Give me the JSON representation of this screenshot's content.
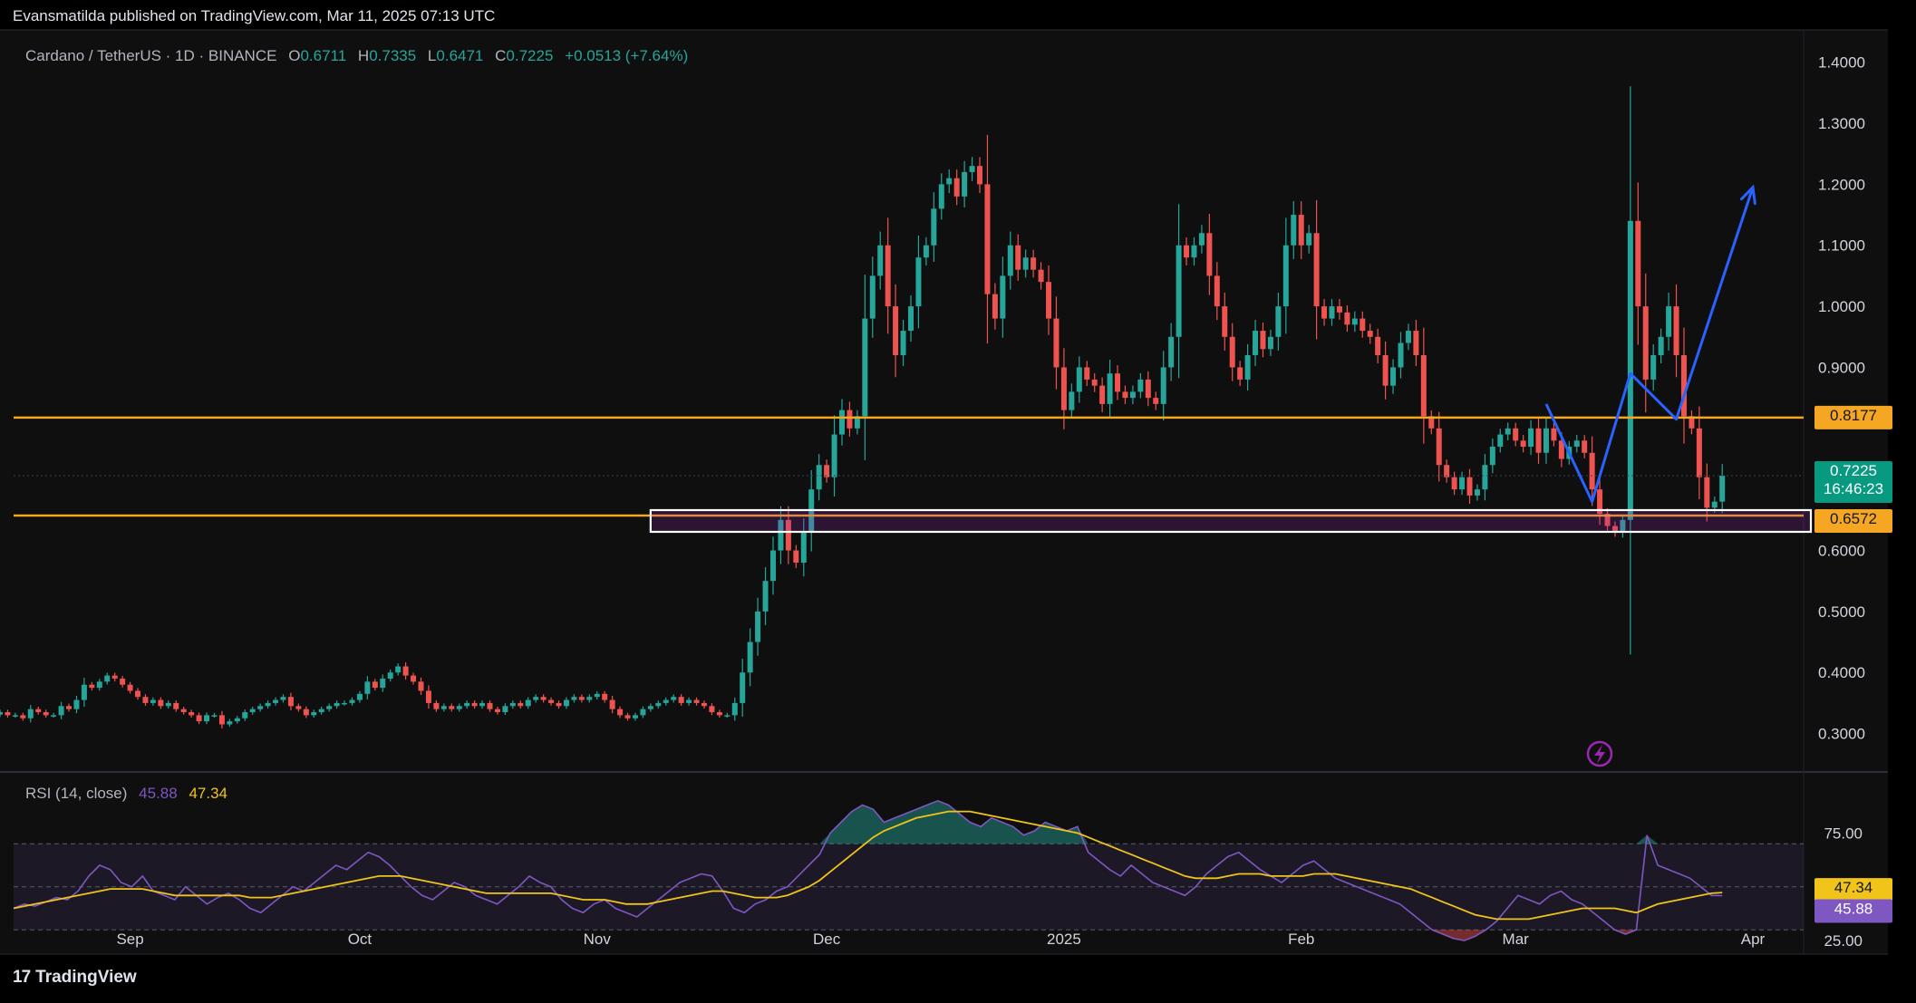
{
  "header": {
    "publisher_line": "Evansmatilda published on TradingView.com, Mar 11, 2025 07:13 UTC"
  },
  "legend": {
    "symbol": "Cardano / TetherUS · 1D · BINANCE",
    "open_label": "O",
    "open": "0.6711",
    "high_label": "H",
    "high": "0.7335",
    "low_label": "L",
    "low": "0.6471",
    "close_label": "C",
    "close": "0.7225",
    "change": "+0.0513 (+7.64%)"
  },
  "rsi_legend": {
    "label": "RSI (14, close)",
    "rsi_value": "45.88",
    "ma_value": "47.34"
  },
  "price_tags": {
    "resistance": "0.8177",
    "support": "0.6572",
    "last": "0.7225",
    "countdown": "16:46:23",
    "rsi": "45.88",
    "rsi_ma": "47.34"
  },
  "brand": {
    "logo_mark": "17",
    "name": "TradingView"
  },
  "colors": {
    "up": "#26a69a",
    "down": "#ef5350",
    "level": "#f5a623",
    "projection": "#2962ff",
    "rsi": "#7e57c2",
    "rsi_ma": "#f0c419",
    "zone_border": "#ffffff"
  },
  "icons": [
    "lightning-icon",
    "tradingview-logo-icon"
  ],
  "chart_data": [
    {
      "type": "candlestick",
      "title": "Cardano / TetherUS · 1D · BINANCE",
      "x_axis_type": "date",
      "x_start": "2024-08-15",
      "x_end": "2025-04-10",
      "xticks": [
        {
          "label": "Sep",
          "date": "2024-09-01"
        },
        {
          "label": "Oct",
          "date": "2024-10-01"
        },
        {
          "label": "Nov",
          "date": "2024-11-01"
        },
        {
          "label": "Dec",
          "date": "2024-12-01"
        },
        {
          "label": "2025",
          "date": "2025-01-01"
        },
        {
          "label": "Feb",
          "date": "2025-02-01"
        },
        {
          "label": "Mar",
          "date": "2025-03-01"
        },
        {
          "label": "Apr",
          "date": "2025-04-01"
        }
      ],
      "yticks": [
        "1.4000",
        "1.3000",
        "1.2000",
        "1.1000",
        "1.0000",
        "0.9000",
        "0.6000",
        "0.5000",
        "0.4000",
        "0.3000"
      ],
      "ylim": [
        0.24,
        1.45
      ],
      "series_start_date": "2024-08-15",
      "close": [
        0.335,
        0.33,
        0.33,
        0.325,
        0.34,
        0.335,
        0.33,
        0.33,
        0.345,
        0.34,
        0.355,
        0.38,
        0.375,
        0.385,
        0.395,
        0.39,
        0.38,
        0.37,
        0.36,
        0.35,
        0.355,
        0.345,
        0.35,
        0.34,
        0.335,
        0.33,
        0.32,
        0.33,
        0.33,
        0.315,
        0.32,
        0.325,
        0.335,
        0.34,
        0.345,
        0.35,
        0.355,
        0.36,
        0.345,
        0.34,
        0.33,
        0.335,
        0.34,
        0.345,
        0.35,
        0.35,
        0.355,
        0.365,
        0.385,
        0.375,
        0.39,
        0.4,
        0.41,
        0.395,
        0.385,
        0.37,
        0.35,
        0.34,
        0.345,
        0.34,
        0.345,
        0.35,
        0.345,
        0.35,
        0.34,
        0.335,
        0.345,
        0.35,
        0.345,
        0.355,
        0.36,
        0.355,
        0.35,
        0.345,
        0.355,
        0.36,
        0.355,
        0.36,
        0.365,
        0.355,
        0.34,
        0.33,
        0.325,
        0.33,
        0.34,
        0.345,
        0.35,
        0.355,
        0.36,
        0.35,
        0.355,
        0.35,
        0.345,
        0.335,
        0.33,
        0.33,
        0.35,
        0.4,
        0.45,
        0.5,
        0.55,
        0.6,
        0.65,
        0.6,
        0.58,
        0.63,
        0.7,
        0.74,
        0.72,
        0.79,
        0.83,
        0.8,
        0.82,
        0.98,
        1.05,
        1.1,
        1.0,
        0.92,
        0.96,
        1.0,
        1.08,
        1.1,
        1.16,
        1.2,
        1.21,
        1.18,
        1.22,
        1.23,
        1.2,
        1.02,
        0.98,
        1.05,
        1.1,
        1.06,
        1.08,
        1.06,
        1.04,
        0.98,
        0.9,
        0.83,
        0.86,
        0.9,
        0.88,
        0.87,
        0.84,
        0.89,
        0.86,
        0.85,
        0.86,
        0.88,
        0.85,
        0.84,
        0.9,
        0.95,
        1.1,
        1.08,
        1.1,
        1.12,
        1.05,
        1.0,
        0.95,
        0.9,
        0.88,
        0.92,
        0.96,
        0.93,
        0.95,
        1.0,
        1.1,
        1.15,
        1.1,
        1.12,
        1.0,
        0.98,
        1.0,
        0.99,
        0.97,
        0.98,
        0.96,
        0.95,
        0.92,
        0.87,
        0.9,
        0.94,
        0.96,
        0.92,
        0.82,
        0.8,
        0.74,
        0.72,
        0.7,
        0.72,
        0.69,
        0.7,
        0.74,
        0.77,
        0.79,
        0.8,
        0.78,
        0.77,
        0.8,
        0.76,
        0.8,
        0.78,
        0.75,
        0.77,
        0.78,
        0.76,
        0.7,
        0.66,
        0.64,
        0.63,
        0.65,
        1.14,
        1.0,
        0.88,
        0.92,
        0.95,
        1.0,
        0.92,
        0.82,
        0.8,
        0.72,
        0.67,
        0.68,
        0.7225
      ]
    },
    {
      "type": "line",
      "title": "RSI (14, close)",
      "yticks": [
        "75.00",
        "25.00"
      ],
      "bands": [
        70,
        50,
        30
      ],
      "ylim": [
        20,
        100
      ],
      "series": [
        {
          "name": "RSI",
          "values": [
            40,
            42,
            41,
            43,
            45,
            44,
            48,
            55,
            60,
            58,
            52,
            50,
            55,
            48,
            46,
            44,
            50,
            46,
            42,
            45,
            47,
            44,
            40,
            38,
            42,
            46,
            50,
            48,
            52,
            56,
            60,
            58,
            62,
            66,
            64,
            60,
            55,
            50,
            46,
            44,
            48,
            52,
            50,
            46,
            44,
            42,
            46,
            50,
            55,
            52,
            50,
            44,
            40,
            38,
            42,
            44,
            40,
            38,
            36,
            40,
            44,
            48,
            52,
            54,
            56,
            55,
            48,
            40,
            38,
            42,
            44,
            48,
            50,
            55,
            60,
            65,
            75,
            80,
            85,
            88,
            86,
            80,
            82,
            84,
            86,
            88,
            90,
            88,
            84,
            80,
            78,
            82,
            80,
            78,
            74,
            76,
            80,
            78,
            76,
            78,
            66,
            62,
            58,
            55,
            60,
            56,
            52,
            50,
            48,
            46,
            50,
            56,
            60,
            64,
            66,
            62,
            58,
            55,
            52,
            56,
            60,
            62,
            58,
            54,
            52,
            50,
            48,
            46,
            44,
            42,
            38,
            34,
            30,
            28,
            26,
            25,
            27,
            30,
            34,
            40,
            46,
            44,
            42,
            46,
            48,
            44,
            42,
            38,
            34,
            30,
            28,
            30,
            74,
            60,
            58,
            56,
            54,
            50,
            46,
            45.88
          ]
        },
        {
          "name": "RSI MA",
          "values": [
            40,
            41,
            42,
            43,
            44,
            45,
            46,
            47,
            48,
            49,
            49,
            49,
            49,
            48,
            47,
            46,
            46,
            46,
            46,
            46,
            46,
            46,
            45,
            45,
            45,
            46,
            47,
            48,
            49,
            50,
            51,
            52,
            53,
            54,
            55,
            55,
            55,
            54,
            53,
            52,
            51,
            50,
            49,
            48,
            47,
            47,
            47,
            47,
            47,
            47,
            47,
            46,
            45,
            44,
            44,
            44,
            43,
            42,
            42,
            42,
            43,
            44,
            45,
            46,
            47,
            48,
            48,
            47,
            46,
            45,
            45,
            45,
            46,
            48,
            50,
            53,
            57,
            61,
            65,
            69,
            73,
            76,
            78,
            80,
            82,
            83,
            84,
            85,
            85,
            85,
            84,
            83,
            82,
            81,
            80,
            79,
            78,
            77,
            76,
            75,
            73,
            71,
            69,
            67,
            65,
            63,
            61,
            59,
            57,
            55,
            54,
            54,
            54,
            55,
            56,
            56,
            56,
            55,
            55,
            55,
            55,
            56,
            56,
            56,
            55,
            54,
            53,
            52,
            51,
            50,
            49,
            47,
            45,
            43,
            41,
            39,
            37,
            36,
            35,
            35,
            35,
            35,
            36,
            37,
            38,
            39,
            40,
            40,
            40,
            40,
            39,
            38,
            40,
            42,
            43,
            44,
            45,
            46,
            47,
            47.34
          ]
        }
      ]
    }
  ]
}
